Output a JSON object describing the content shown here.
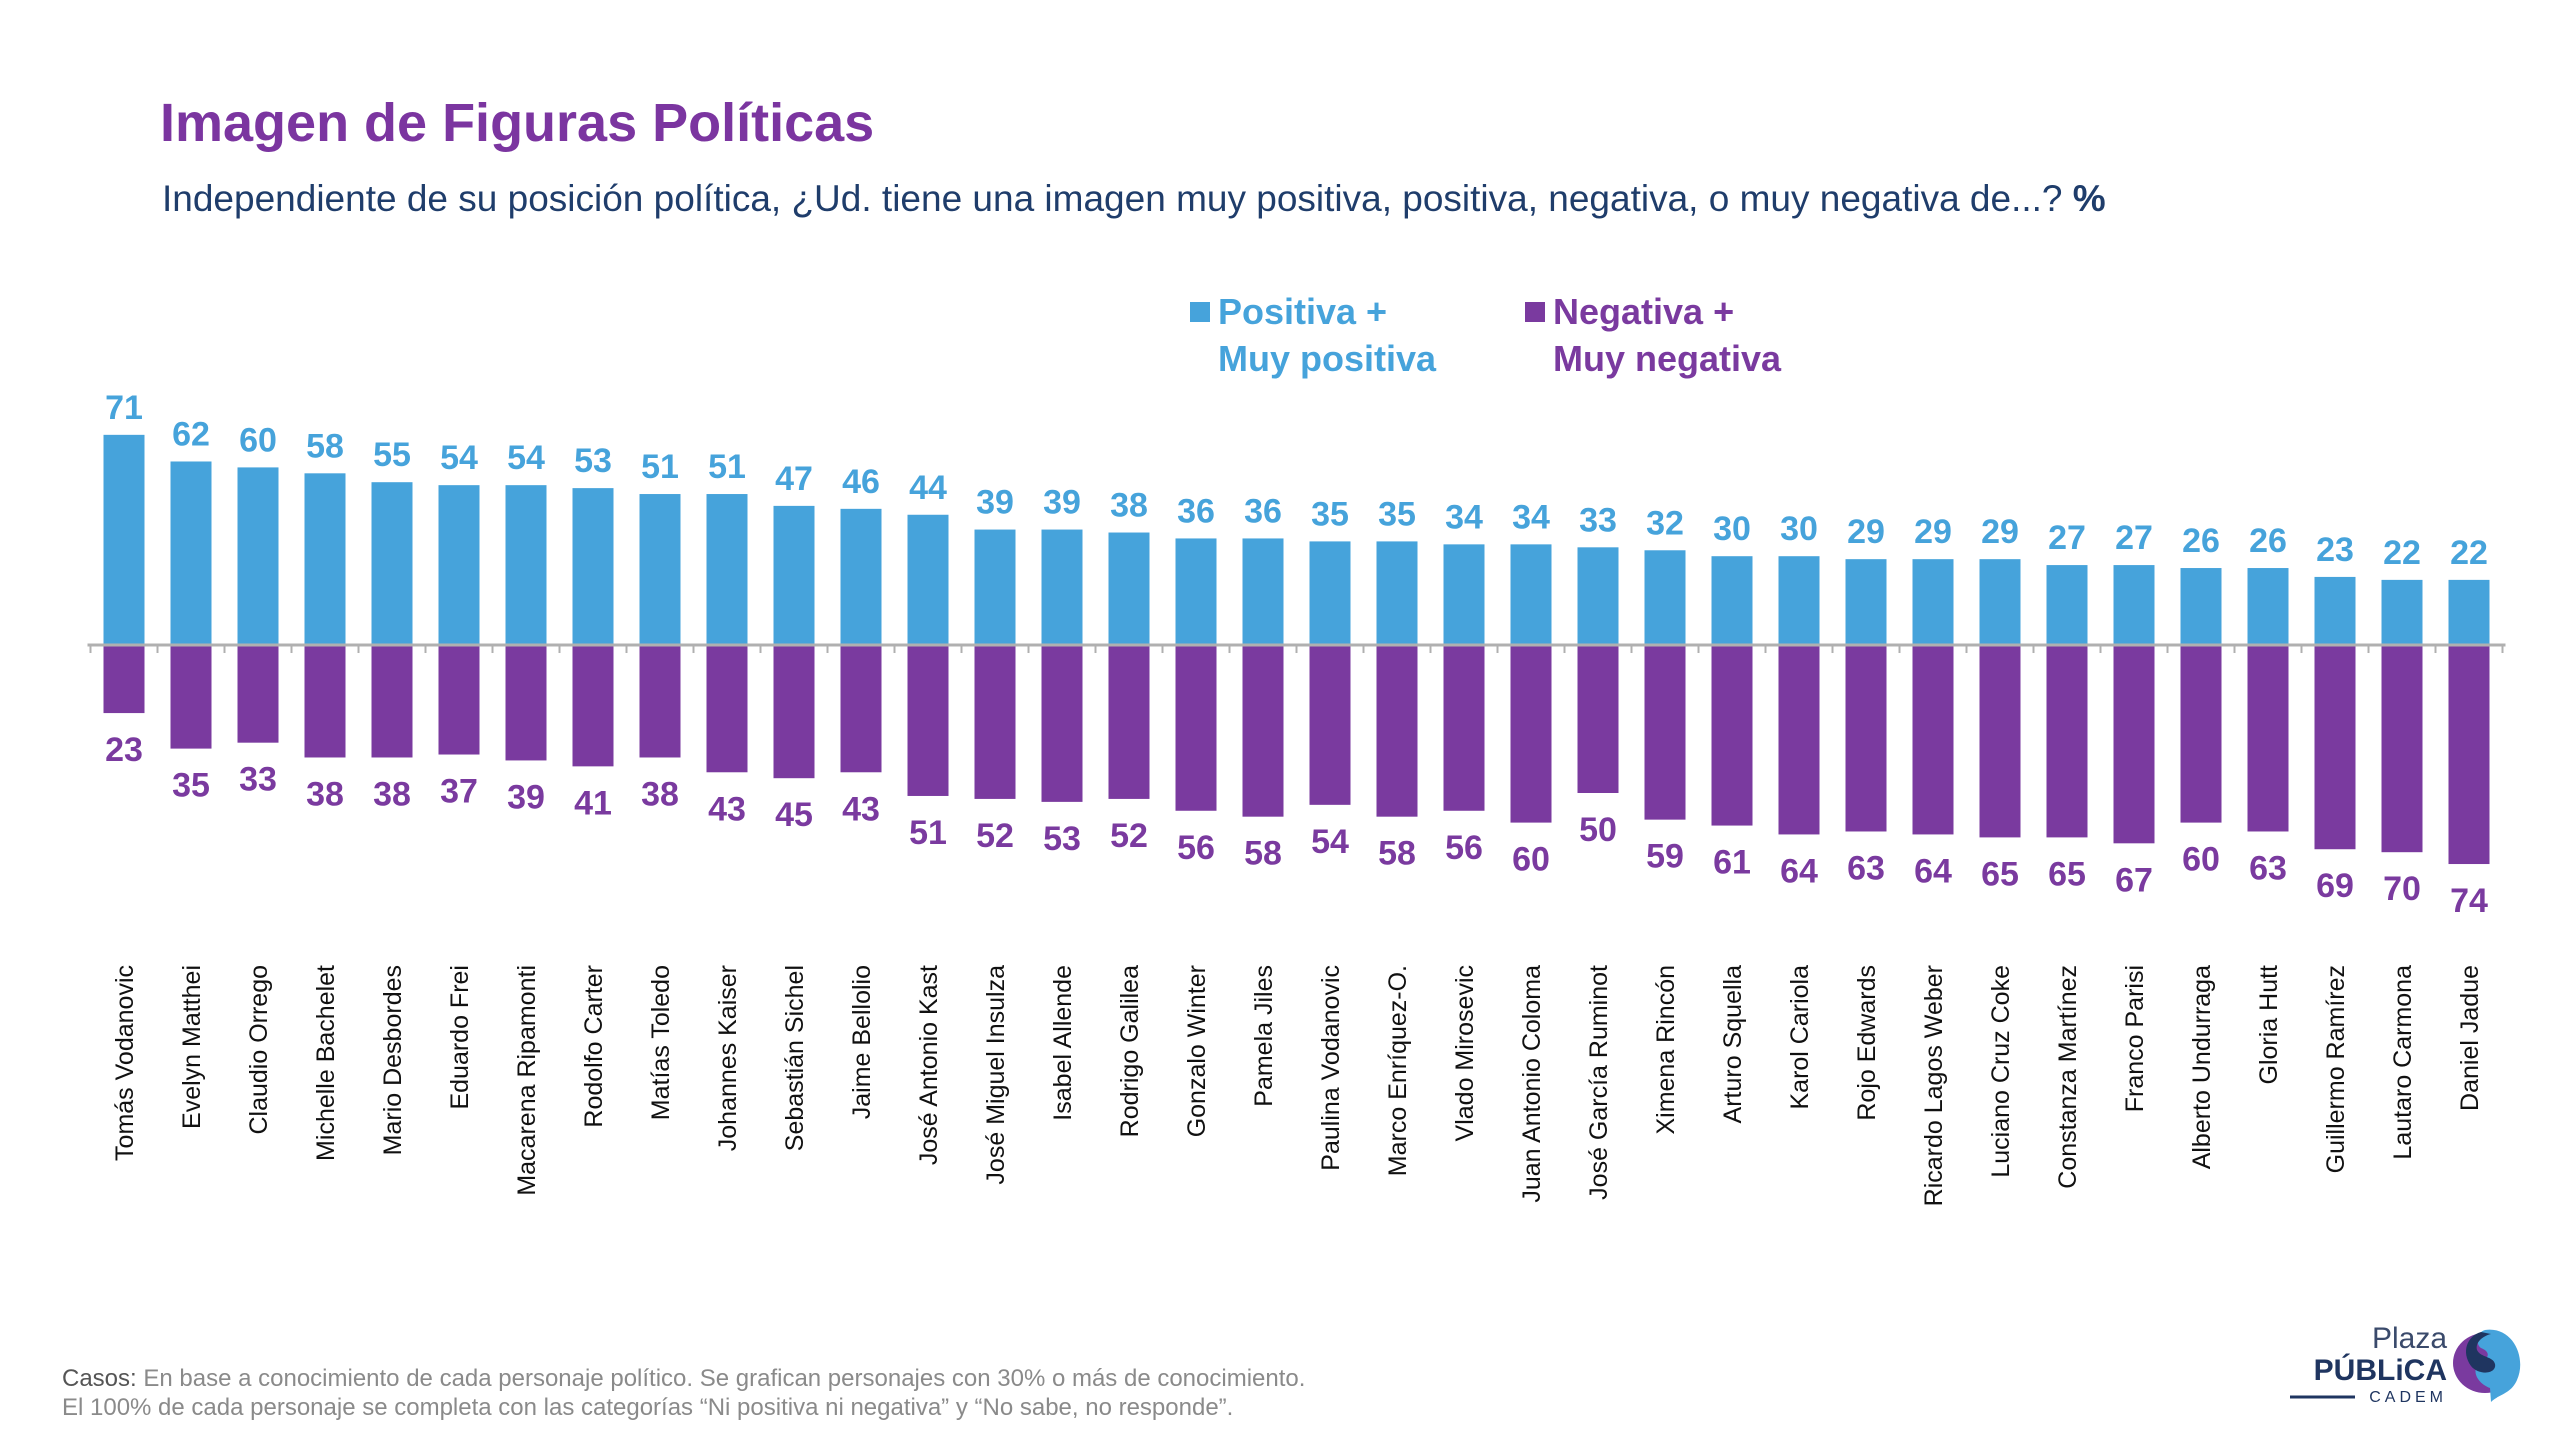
{
  "title": "Imagen de Figuras Políticas",
  "subtitle": "Independiente de su posición política, ¿Ud. tiene una imagen muy positiva, positiva, negativa, o muy negativa de...?",
  "subtitle_unit": "%",
  "colors": {
    "positive": "#46a3db",
    "negative": "#7a3a9f",
    "title": "#7b35a0",
    "axis": "#b0b0b0"
  },
  "chart_data": {
    "type": "bar",
    "title": "Imagen de Figuras Políticas",
    "xlabel": "",
    "ylabel": "%",
    "legend_position": "top-center",
    "categories": [
      "Tomás Vodanovic",
      "Evelyn Matthei",
      "Claudio Orrego",
      "Michelle Bachelet",
      "Mario Desbordes",
      "Eduardo Frei",
      "Macarena Ripamonti",
      "Rodolfo Carter",
      "Matías Toledo",
      "Johannes Kaiser",
      "Sebastián Sichel",
      "Jaime Bellolio",
      "José Antonio Kast",
      "José Miguel Insulza",
      "Isabel Allende",
      "Rodrigo Galilea",
      "Gonzalo Winter",
      "Pamela Jiles",
      "Paulina Vodanovic",
      "Marco Enríquez-O.",
      "Vlado Mirosevic",
      "Juan Antonio Coloma",
      "José García Ruminot",
      "Ximena Rincón",
      "Arturo Squella",
      "Karol Cariola",
      "Rojo Edwards",
      "Ricardo Lagos Weber",
      "Luciano Cruz Coke",
      "Constanza Martínez",
      "Franco Parisi",
      "Alberto Undurraga",
      "Gloria Hutt",
      "Guillermo Ramírez",
      "Lautaro Carmona",
      "Daniel Jadue"
    ],
    "series": [
      {
        "name": "Positiva + Muy positiva",
        "values": [
          71,
          62,
          60,
          58,
          55,
          54,
          54,
          53,
          51,
          51,
          47,
          46,
          44,
          39,
          39,
          38,
          36,
          36,
          35,
          35,
          34,
          34,
          33,
          32,
          30,
          30,
          29,
          29,
          29,
          27,
          27,
          26,
          26,
          23,
          22,
          22
        ]
      },
      {
        "name": "Negativa + Muy negativa",
        "values": [
          23,
          35,
          33,
          38,
          38,
          37,
          39,
          41,
          38,
          43,
          45,
          43,
          51,
          52,
          53,
          52,
          56,
          58,
          54,
          58,
          56,
          60,
          50,
          59,
          61,
          64,
          63,
          64,
          65,
          65,
          67,
          60,
          63,
          69,
          70,
          74
        ]
      }
    ]
  },
  "legend": {
    "positive": "Positiva +\nMuy positiva",
    "negative": "Negativa +\nMuy negativa"
  },
  "footer": {
    "label": "Casos:",
    "line1": " En base a conocimiento de cada personaje político. Se grafican personajes con 30% o más de conocimiento.",
    "line2": "El 100% de cada personaje se completa con las categorías “Ni positiva ni negativa” y “No sabe, no responde”."
  },
  "logo": {
    "line1": "Plaza",
    "line2": "PÚBLiCA",
    "line3": "CADEM"
  }
}
